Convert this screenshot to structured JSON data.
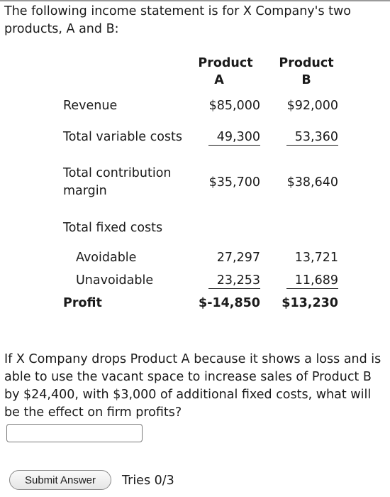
{
  "intro": "The following income statement is for X Company's two products, A and B:",
  "table": {
    "header_a_line1": "Product",
    "header_a_line2": "A",
    "header_b_line1": "Product",
    "header_b_line2": "B",
    "rows": {
      "revenue": {
        "label": "Revenue",
        "a": "$85,000",
        "b": "$92,000"
      },
      "total_variable_costs": {
        "label": "Total variable costs",
        "a": "49,300",
        "b": "53,360"
      },
      "total_contribution_margin": {
        "label": "Total contribution margin",
        "a": "$35,700",
        "b": "$38,640"
      },
      "total_fixed_costs": {
        "label": "Total fixed costs"
      },
      "avoidable": {
        "label": "Avoidable",
        "a": "27,297",
        "b": "13,721"
      },
      "unavoidable": {
        "label": "Unavoidable",
        "a": "23,253",
        "b": "11,689"
      },
      "profit": {
        "label": "Profit",
        "a": "$-14,850",
        "b": "$13,230"
      }
    }
  },
  "question": "If X Company drops Product A because it shows a loss and is able to use the vacant space to increase sales of Product B by $24,400, with $3,000 of additional fixed costs, what will be the effect on firm profits?",
  "answer": {
    "value": "",
    "placeholder": ""
  },
  "submit_label": "Submit Answer",
  "tries": "Tries 0/3"
}
